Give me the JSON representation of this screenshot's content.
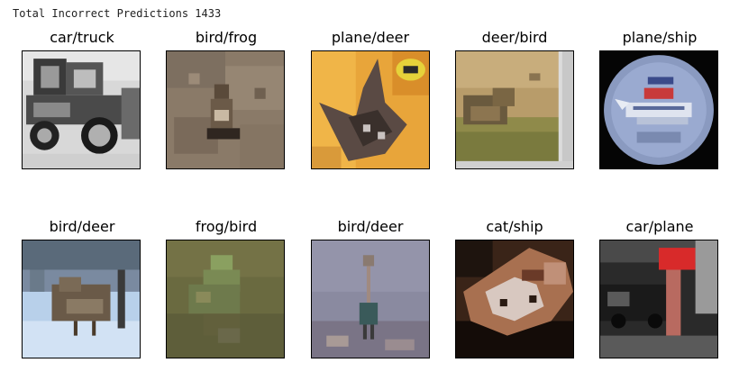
{
  "summary_text": "Total Incorrect Predictions 1433",
  "predictions": [
    {
      "label": "car/truck"
    },
    {
      "label": "bird/frog"
    },
    {
      "label": "plane/deer"
    },
    {
      "label": "deer/bird"
    },
    {
      "label": "plane/ship"
    },
    {
      "label": "bird/deer"
    },
    {
      "label": "frog/bird"
    },
    {
      "label": "bird/deer"
    },
    {
      "label": "cat/ship"
    },
    {
      "label": "car/plane"
    }
  ]
}
